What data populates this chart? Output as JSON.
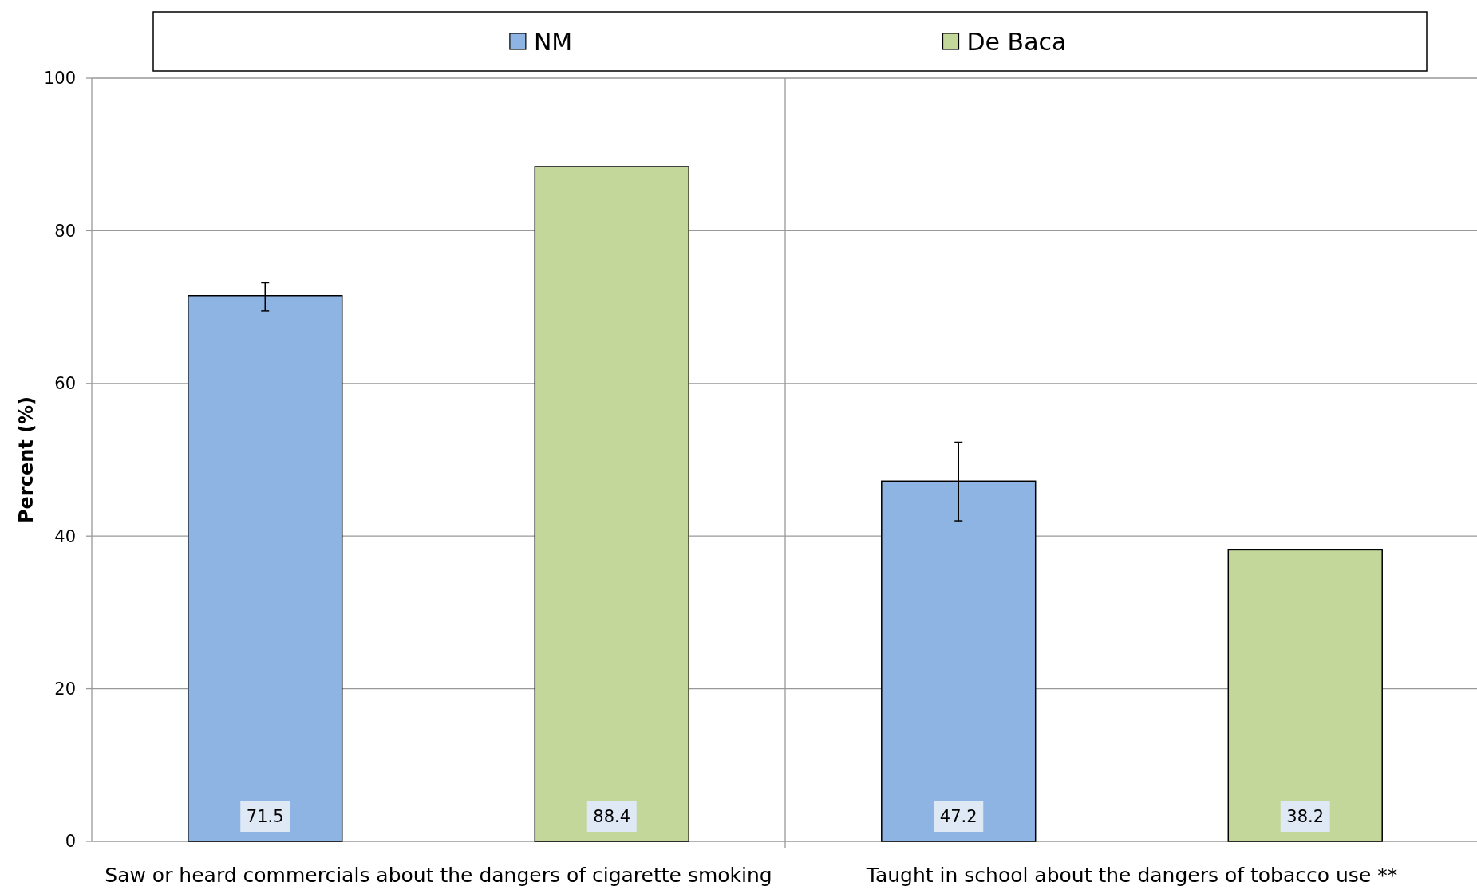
{
  "chart_data": {
    "type": "bar",
    "ylabel": "Percent (%)",
    "categories": [
      "Saw or heard commercials about the dangers of cigarette smoking",
      "Taught in school about the dangers of tobacco use **"
    ],
    "series": [
      {
        "name": "NM",
        "color": "#8eb4e3",
        "values": [
          71.5,
          47.2
        ],
        "errors": [
          [
            69.5,
            73.2
          ],
          [
            42.0,
            52.3
          ]
        ]
      },
      {
        "name": "De Baca",
        "color": "#c4d79b",
        "values": [
          88.4,
          38.2
        ],
        "errors": [
          null,
          null
        ]
      }
    ],
    "ylim": [
      0,
      100
    ],
    "yticks": [
      0,
      20,
      40,
      60,
      80,
      100
    ],
    "grid": "y",
    "legend": "top",
    "data_labels": true
  }
}
